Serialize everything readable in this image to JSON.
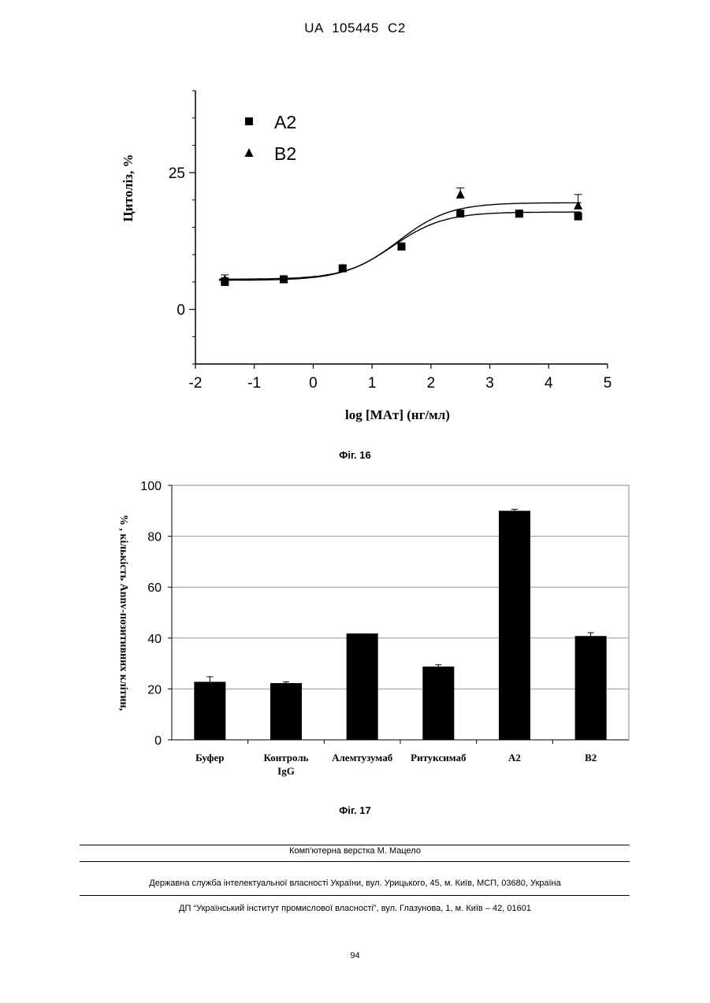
{
  "header": {
    "doc_id": "UA   105445   C2"
  },
  "figures": [
    {
      "caption": "Фіг. 16",
      "chart_data": {
        "type": "scatter",
        "xlabel": "log [MAт] (нг/мл)",
        "ylabel": "Цитоліз, %",
        "xlim": [
          -2,
          5
        ],
        "ylim": [
          -10,
          40
        ],
        "x_ticks": [
          "-2",
          "-1",
          "0",
          "1",
          "2",
          "3",
          "4",
          "5"
        ],
        "y_ticks": [
          "0",
          "25"
        ],
        "legend_position": "top-left",
        "series": [
          {
            "name": "A2",
            "marker": "square",
            "x": [
              -1.5,
              -0.5,
              0.5,
              1.5,
              2.5,
              3.5,
              4.5
            ],
            "y": [
              5.0,
              5.5,
              7.5,
              11.5,
              17.5,
              17.5,
              17.0
            ],
            "error": [
              0.8,
              0.4,
              0.6,
              0.6,
              0.6,
              0.4,
              0.4
            ],
            "fit": {
              "bottom": 5.3,
              "top": 17.8,
              "logEC50": 1.35,
              "hill": 1.0
            }
          },
          {
            "name": "B2",
            "marker": "triangle",
            "x": [
              -1.5,
              -0.5,
              0.5,
              1.5,
              2.5,
              3.5,
              4.5
            ],
            "y": [
              5.5,
              5.5,
              7.5,
              11.5,
              21.0,
              17.5,
              19.0
            ],
            "error": [
              0.8,
              0.4,
              0.6,
              0.6,
              1.2,
              0.4,
              2.0
            ],
            "fit": {
              "bottom": 5.5,
              "top": 19.5,
              "logEC50": 1.45,
              "hill": 1.0
            }
          }
        ]
      }
    },
    {
      "caption": "Фіг. 17",
      "chart_data": {
        "type": "bar",
        "ylabel": "% , кількість Annv-позитивних клітин,",
        "ylim": [
          0,
          100
        ],
        "y_ticks": [
          "0",
          "20",
          "40",
          "60",
          "80",
          "100"
        ],
        "grid": true,
        "categories": [
          "Буфер",
          "Контроль IgG",
          "Алемтузумаб",
          "Ритуксимаб",
          "А2",
          "В2"
        ],
        "values": [
          22.8,
          22.3,
          41.8,
          28.8,
          90.0,
          40.8
        ],
        "errors": [
          2.0,
          0.5,
          0.0,
          0.7,
          0.6,
          1.3
        ],
        "bar_color": "#000000"
      }
    }
  ],
  "footer": {
    "composer": "Комп’ютерна верстка М. Мацело",
    "agency": "Державна служба інтелектуальної власності України, вул. Урицького, 45, м. Київ, МСП, 03680, Україна",
    "institute": "ДП “Український інститут промислової власності”, вул. Глазунова, 1, м. Київ – 42, 01601",
    "page_number": "94"
  }
}
